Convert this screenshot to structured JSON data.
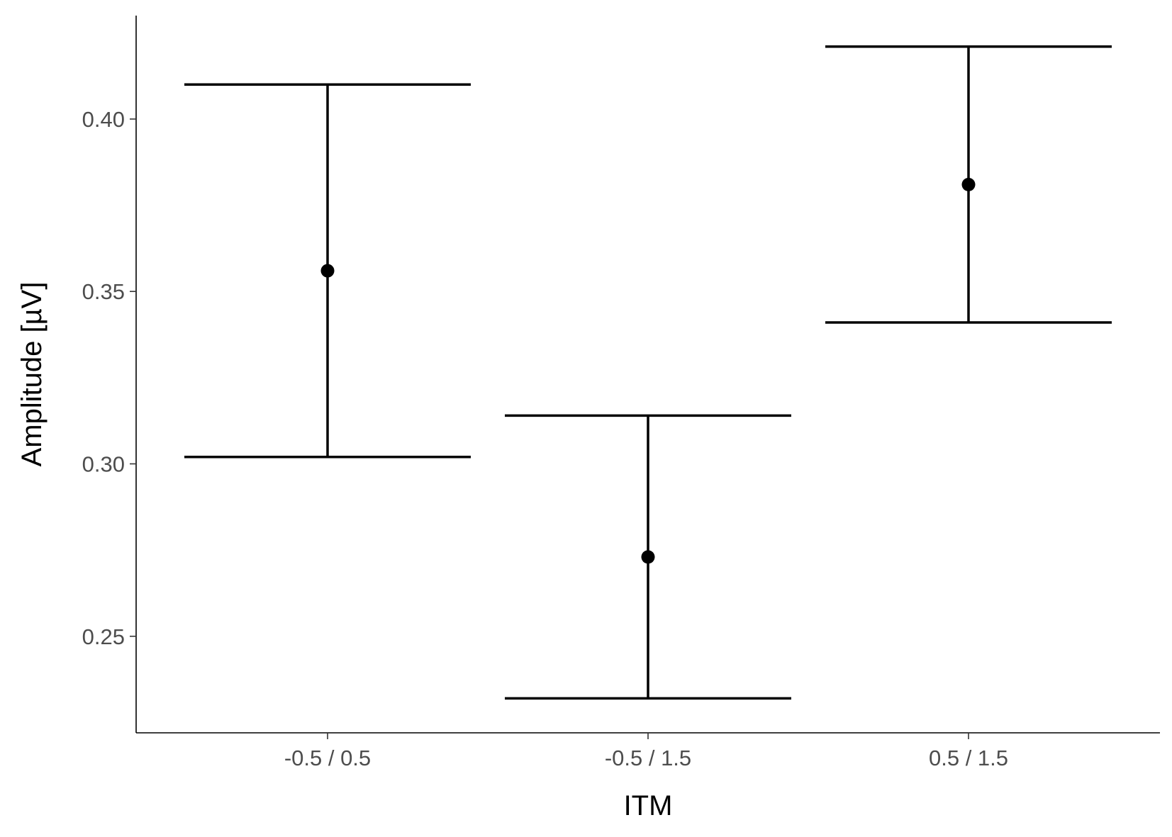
{
  "chart_data": {
    "type": "errorbar",
    "xlabel": "ITM",
    "ylabel": "Amplitude [µV]",
    "categories": [
      "-0.5 / 0.5",
      "-0.5 / 1.5",
      "0.5 / 1.5"
    ],
    "values": [
      0.356,
      0.273,
      0.381
    ],
    "lower": [
      0.302,
      0.232,
      0.341
    ],
    "upper": [
      0.41,
      0.314,
      0.421
    ],
    "ylim": [
      0.222,
      0.43
    ],
    "yticks": [
      0.25,
      0.3,
      0.35,
      0.4
    ],
    "ytick_labels": [
      "0.25",
      "0.30",
      "0.35",
      "0.40"
    ],
    "grid": false,
    "color": "#000000"
  }
}
